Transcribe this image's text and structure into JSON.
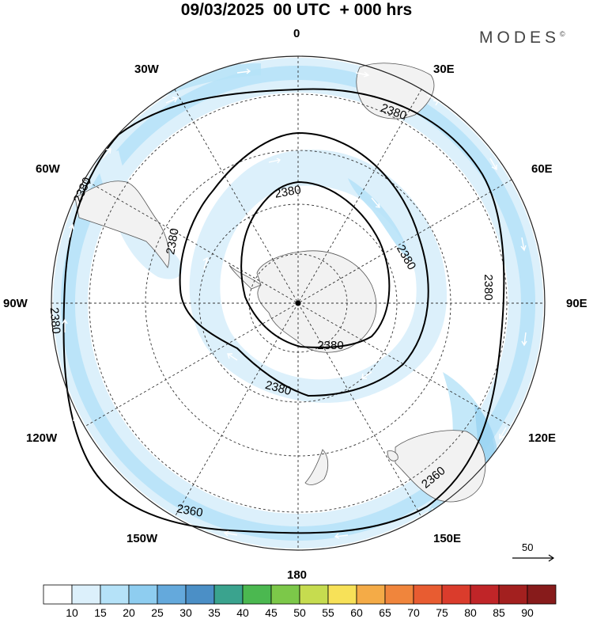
{
  "title": "09/03/2025  00 UTC  + 000 hrs",
  "brand": {
    "text": "MODES",
    "mark": "©"
  },
  "longitude_labels": [
    {
      "id": "0",
      "text": "0"
    },
    {
      "id": "30e",
      "text": "30E"
    },
    {
      "id": "60e",
      "text": "60E"
    },
    {
      "id": "90e",
      "text": "90E"
    },
    {
      "id": "120e",
      "text": "120E"
    },
    {
      "id": "150e",
      "text": "150E"
    },
    {
      "id": "180",
      "text": "180"
    },
    {
      "id": "150w",
      "text": "150W"
    },
    {
      "id": "120w",
      "text": "120W"
    },
    {
      "id": "90w",
      "text": "90W"
    },
    {
      "id": "60w",
      "text": "60W"
    },
    {
      "id": "30w",
      "text": "30W"
    }
  ],
  "contour_labels": [
    "2380",
    "2380",
    "2380",
    "2380",
    "2380",
    "2380",
    "2380",
    "2360",
    "2360",
    "2380",
    "2380"
  ],
  "reference_vector": {
    "label": "50"
  },
  "colorbar": {
    "labels": [
      "10",
      "15",
      "20",
      "25",
      "30",
      "35",
      "40",
      "45",
      "50",
      "55",
      "60",
      "65",
      "70",
      "75",
      "80",
      "85",
      "90"
    ],
    "colors": [
      "#ffffff",
      "#dcf0fb",
      "#b5e2f8",
      "#8ecdf0",
      "#64a9dc",
      "#4b8fc6",
      "#3aa38e",
      "#4bb850",
      "#7cc849",
      "#c6dc4f",
      "#f7e158",
      "#f4ab47",
      "#f0853c",
      "#e85c31",
      "#da3c2c",
      "#c02528",
      "#a3201f",
      "#871b1b"
    ]
  },
  "legend": {
    "colorbar_position": "bottom"
  }
}
